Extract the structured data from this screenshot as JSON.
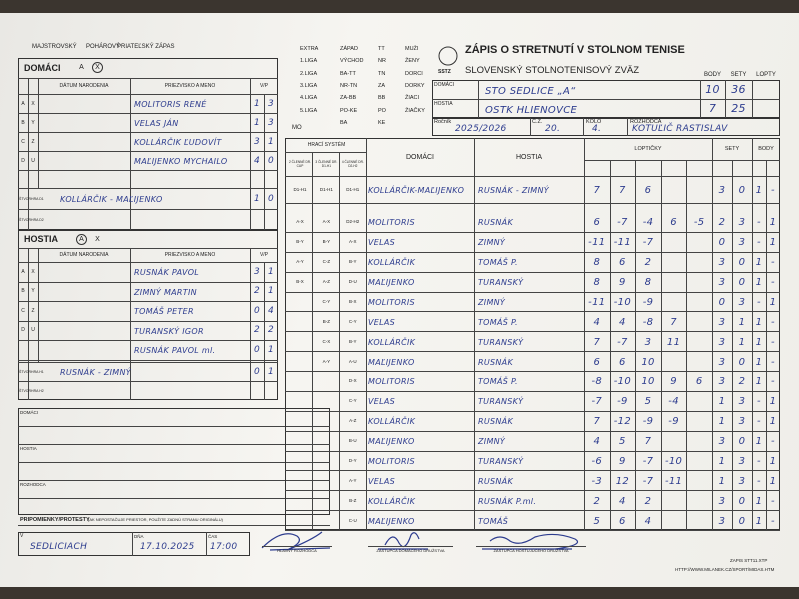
{
  "header": {
    "match_types": [
      "MAJSTROVSKÝ",
      "POHÁROVÝ",
      "PRIATEĽSKÝ ZÁPAS"
    ],
    "title": "ZÁPIS O STRETNUTÍ V STOLNOM TENISE",
    "federation": "SLOVENSKÝ STOLNOTENISOVÝ ZVÄZ",
    "logo": "SSTZ",
    "mo": "MO",
    "leagues": [
      [
        "EXTRA",
        "1.LIGA",
        "2.LIGA",
        "3.LIGA",
        "4.LIGA",
        "5.LIGA"
      ],
      [
        "ZÁPAD",
        "VÝCHOD",
        "BA-TT",
        "NR-TN",
        "ZA-BB",
        "PO-KE",
        "BA"
      ],
      [
        "TT",
        "NR",
        "TN",
        "ZA",
        "BB",
        "PO",
        "KE"
      ],
      [
        "MUŽI",
        "ŽENY",
        "DORCI",
        "DORKY",
        "ŽIACI",
        "ŽIAČKY"
      ]
    ]
  },
  "teams": {
    "labels": {
      "home": "DOMÁCI",
      "away": "HOSTIA",
      "points": "BODY",
      "sets": "SETY",
      "balls": "LOPTY"
    },
    "home": {
      "name": "STO SEDLICE „A“",
      "points": 10,
      "sets": 36
    },
    "away": {
      "name": "OSTK HLIENOVCE",
      "points": 7,
      "sets": 25
    }
  },
  "info": {
    "season_label": "Ročník",
    "season": "2025/2026",
    "number_label": "Č.Z.",
    "number": "20.",
    "round_label": "KOLO",
    "round": "4.",
    "referee_label": "ROZHODCA",
    "referee": "KOTUĽIČ RASTISLAV"
  },
  "rosters": {
    "home": {
      "title": "DOMÁCI",
      "choices": [
        "A",
        "X"
      ],
      "columns": [
        "DÁTUM NARODENIA",
        "PRIEZVISKO A MENO",
        "V/P"
      ],
      "players": [
        {
          "slots": [
            "A",
            "X"
          ],
          "name": "MOLITORIS RENÉ",
          "wins": 1,
          "losses": 3
        },
        {
          "slots": [
            "B",
            "Y"
          ],
          "name": "VELAS JÁN",
          "wins": 1,
          "losses": 3
        },
        {
          "slots": [
            "C",
            "Z"
          ],
          "name": "KOLLÁRČIK ĽUDOVÍT",
          "wins": 3,
          "losses": 1
        },
        {
          "slots": [
            "D",
            "U"
          ],
          "name": "MAĽIJENKO MYCHAILO",
          "wins": 4,
          "losses": 0
        }
      ],
      "doubles": [
        {
          "slot": "ŠTVORHRA D1",
          "name": "KOLLÁRČIK - MAĽIJENKO",
          "wins": 1,
          "losses": 0
        },
        {
          "slot": "ŠTVORHRA D2"
        }
      ]
    },
    "away": {
      "title": "HOSTIA",
      "choices": [
        "A",
        "X"
      ],
      "columns": [
        "DÁTUM NARODENIA",
        "PRIEZVISKO A MENO",
        "V/P"
      ],
      "players": [
        {
          "slots": [
            "A",
            "X"
          ],
          "name": "RUSNÁK PAVOL",
          "wins": 3,
          "losses": 1
        },
        {
          "slots": [
            "B",
            "Y"
          ],
          "name": "ZIMNÝ MARTIN",
          "wins": 2,
          "losses": 1
        },
        {
          "slots": [
            "C",
            "Z"
          ],
          "name": "TOMÁŠ PETER",
          "wins": 0,
          "losses": 4
        },
        {
          "slots": [
            "D",
            "U"
          ],
          "name": "TURANSKÝ IGOR",
          "wins": 2,
          "losses": 2
        },
        {
          "name": "RUSNÁK PAVOL ml.",
          "wins": 0,
          "losses": 1
        }
      ],
      "doubles": [
        {
          "slot": "ŠTVORHRA H1",
          "name": "RUSNÁK - ZIMNÝ",
          "wins": 0,
          "losses": 1
        },
        {
          "slot": "ŠTVORHRA H2"
        }
      ]
    }
  },
  "matches": {
    "columns": {
      "system": "HRACÍ SYSTÉM",
      "home": "DOMÁCI",
      "away": "HOSTIA",
      "balls": "LOPTIČKY",
      "sets": "SETY",
      "points": "BODY"
    },
    "system_sub": [
      "2 ČLENNÉ DR. CUP",
      "3 ČLENNÉ DR. D1-H1",
      "4 ČLENNÉ DR. D2-H2"
    ],
    "rows": [
      {
        "codes": [
          "D1-H1",
          "D1-H1",
          "D1-H1"
        ],
        "home": "KOLLÁRČIK-MAĽIJENKO",
        "away": "RUSNÁK - ZIMNÝ",
        "balls": [
          7,
          7,
          6
        ],
        "sets": [
          3,
          0
        ],
        "points": [
          "1",
          "-"
        ]
      },
      {
        "codes": [
          "A-X",
          "A-X",
          "D2-H2"
        ],
        "home": "MOLITORIS",
        "away": "RUSNÁK",
        "balls": [
          6,
          -7,
          -4,
          6,
          -5
        ],
        "sets": [
          2,
          3
        ],
        "points": [
          "-",
          "1"
        ]
      },
      {
        "codes": [
          "B-Y",
          "B-Y",
          "A-X"
        ],
        "home": "VELAS",
        "away": "ZIMNÝ",
        "balls": [
          -11,
          -11,
          -7
        ],
        "sets": [
          0,
          3
        ],
        "points": [
          "-",
          "1"
        ]
      },
      {
        "codes": [
          "A-Y",
          "C-Z",
          "B-Y"
        ],
        "home": "KOLLÁRČIK",
        "away": "TOMÁŠ P.",
        "balls": [
          8,
          6,
          2
        ],
        "sets": [
          3,
          0
        ],
        "points": [
          "1",
          "-"
        ]
      },
      {
        "codes": [
          "B-X",
          "A-Z",
          "D-U"
        ],
        "home": "MAĽIJENKO",
        "away": "TURANSKÝ",
        "balls": [
          8,
          9,
          8
        ],
        "sets": [
          3,
          0
        ],
        "points": [
          "1",
          "-"
        ]
      },
      {
        "codes": [
          "C-Y",
          "B-X"
        ],
        "home": "MOLITORIS",
        "away": "ZIMNÝ",
        "balls": [
          -11,
          -10,
          -9
        ],
        "sets": [
          0,
          3
        ],
        "points": [
          "-",
          "1"
        ]
      },
      {
        "codes": [
          "B-Z",
          "C-Y"
        ],
        "home": "VELAS",
        "away": "TOMÁŠ P.",
        "balls": [
          4,
          4,
          -8,
          7
        ],
        "sets": [
          3,
          1
        ],
        "points": [
          "1",
          "-"
        ]
      },
      {
        "codes": [
          "C-X",
          "B-Y"
        ],
        "home": "KOLLÁRČIK",
        "away": "TURANSKÝ",
        "balls": [
          7,
          -7,
          3,
          11
        ],
        "sets": [
          3,
          1
        ],
        "points": [
          "1",
          "-"
        ]
      },
      {
        "codes": [
          "A-Y",
          "A-U"
        ],
        "home": "MAĽIJENKO",
        "away": "RUSNÁK",
        "balls": [
          6,
          6,
          10
        ],
        "sets": [
          3,
          0
        ],
        "points": [
          "1",
          "-"
        ]
      },
      {
        "codes": [
          "D-X"
        ],
        "home": "MOLITORIS",
        "away": "TOMÁŠ P.",
        "balls": [
          -8,
          -10,
          10,
          9,
          6
        ],
        "sets": [
          3,
          2
        ],
        "points": [
          "1",
          "-"
        ]
      },
      {
        "codes": [
          "C-Y"
        ],
        "home": "VELAS",
        "away": "TURANSKÝ",
        "balls": [
          -7,
          -9,
          5,
          -4
        ],
        "sets": [
          1,
          3
        ],
        "points": [
          "-",
          "1"
        ]
      },
      {
        "codes": [
          "A-Z"
        ],
        "home": "KOLLÁRČIK",
        "away": "RUSNÁK",
        "balls": [
          7,
          -12,
          -9,
          -9
        ],
        "sets": [
          1,
          3
        ],
        "points": [
          "-",
          "1"
        ]
      },
      {
        "codes": [
          "B-U"
        ],
        "home": "MAĽIJENKO",
        "away": "ZIMNÝ",
        "balls": [
          4,
          5,
          7
        ],
        "sets": [
          3,
          0
        ],
        "points": [
          "1",
          "-"
        ]
      },
      {
        "codes": [
          "D-Y"
        ],
        "home": "MOLITORIS",
        "away": "TURANSKÝ",
        "balls": [
          -6,
          9,
          -7,
          -10
        ],
        "sets": [
          1,
          3
        ],
        "points": [
          "-",
          "1"
        ]
      },
      {
        "codes": [
          "A-Y"
        ],
        "home": "VELAS",
        "away": "RUSNÁK",
        "balls": [
          -3,
          12,
          -7,
          -11
        ],
        "sets": [
          1,
          3
        ],
        "points": [
          "-",
          "1"
        ]
      },
      {
        "codes": [
          "B-Z"
        ],
        "home": "KOLLÁRČIK",
        "away": "RUSNÁK P.ml.",
        "balls": [
          2,
          4,
          2
        ],
        "sets": [
          3,
          0
        ],
        "points": [
          "1",
          "-"
        ]
      },
      {
        "codes": [
          "C-U"
        ],
        "home": "MAĽIJENKO",
        "away": "TOMÁŠ",
        "balls": [
          5,
          6,
          4
        ],
        "sets": [
          3,
          0
        ],
        "points": [
          "1",
          "-"
        ]
      }
    ]
  },
  "notes": {
    "sections": [
      "DOMÁCI",
      "HOSTIA",
      "ROZHODCA"
    ],
    "protests": "PRIPOMIENKY/PROTESTY",
    "protests_hint": "(AK NEPOSTAČUJE PRIESTOR, POUŽITE ZADNÚ STRANU ORIGINÁLU)"
  },
  "footer": {
    "place_label": "V",
    "place": "SEDLICIACH",
    "date_label": "DŇA",
    "date": "17.10.2025",
    "time_label": "ČAS",
    "time": "17:00",
    "signatures": [
      "HLAVNÝ ROZHODCA",
      "ZÁSTUPCA DOMÁCEHO DRUŽSTVA",
      "ZÁSTUPCA HOSŤUJÚCEHO DRUŽSTVA"
    ],
    "file": "ZAPIS STT11.XTP",
    "url": "HTTP://WWW.MILANEK.CZ/SPORT/MIDAS.HTM"
  }
}
